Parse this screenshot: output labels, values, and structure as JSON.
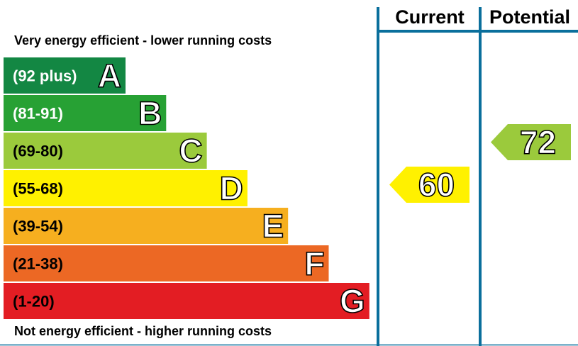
{
  "top_note": "Very energy efficient - lower running costs",
  "bottom_note": "Not energy efficient - higher running costs",
  "columns": {
    "current": "Current",
    "potential": "Potential"
  },
  "chart_data": {
    "type": "bar",
    "title": "",
    "bands": [
      {
        "letter": "A",
        "range": "(92 plus)",
        "min": 92,
        "max": 100,
        "color": "#138743"
      },
      {
        "letter": "B",
        "range": "(81-91)",
        "min": 81,
        "max": 91,
        "color": "#27a134"
      },
      {
        "letter": "C",
        "range": "(69-80)",
        "min": 69,
        "max": 80,
        "color": "#9bca3c"
      },
      {
        "letter": "D",
        "range": "(55-68)",
        "min": 55,
        "max": 68,
        "color": "#fff100"
      },
      {
        "letter": "E",
        "range": "(39-54)",
        "min": 39,
        "max": 54,
        "color": "#f6af1f"
      },
      {
        "letter": "F",
        "range": "(21-38)",
        "min": 21,
        "max": 38,
        "color": "#ec6824"
      },
      {
        "letter": "G",
        "range": "(1-20)",
        "min": 1,
        "max": 20,
        "color": "#e31d23"
      }
    ],
    "ratings": {
      "current": {
        "value": 60,
        "band": "D",
        "color": "#fff100"
      },
      "potential": {
        "value": 72,
        "band": "C",
        "color": "#9bca3c"
      }
    }
  },
  "colors": {
    "divider": "#0a6f9c",
    "text": "#000000"
  }
}
